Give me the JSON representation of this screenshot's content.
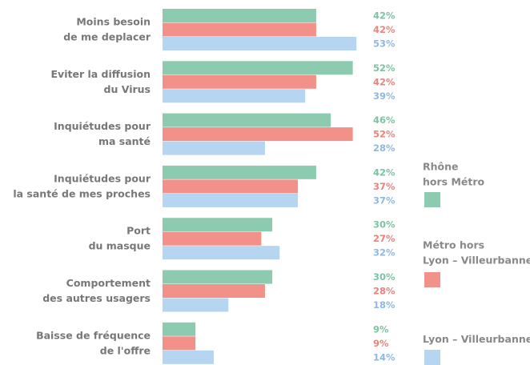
{
  "chart_data": {
    "type": "bar",
    "orientation": "horizontal",
    "categories": [
      "Moins besoin\nde me deplacer",
      "Eviter la diffusion\ndu Virus",
      "Inquiétudes pour\nma santé",
      "Inquiétudes pour\nla santé de mes proches",
      "Port\ndu masque",
      "Comportement\ndes autres usagers",
      "Baisse de fréquence\nde l'offre"
    ],
    "series": [
      {
        "name": "Rhône\nhors Métro",
        "color": "#8dcbb0",
        "label_color": "#7cc4a4",
        "values": [
          42,
          52,
          46,
          42,
          30,
          30,
          9
        ],
        "value_labels": [
          "42%",
          "52%",
          "46%",
          "42%",
          "30%",
          "30%",
          "9%"
        ]
      },
      {
        "name": "Métro hors\nLyon – Villeurbanne",
        "color": "#f2918a",
        "label_color": "#ea857d",
        "values": [
          42,
          42,
          52,
          37,
          27,
          28,
          9
        ],
        "value_labels": [
          "42%",
          "42%",
          "52%",
          "37%",
          "27%",
          "28%",
          "9%"
        ]
      },
      {
        "name": "Lyon – Villeurbanne",
        "color": "#b5d5f1",
        "label_color": "#8fb9e4",
        "values": [
          53,
          39,
          28,
          37,
          32,
          18,
          14
        ],
        "value_labels": [
          "53%",
          "39%",
          "28%",
          "37%",
          "32%",
          "18%",
          "14%"
        ]
      }
    ]
  }
}
